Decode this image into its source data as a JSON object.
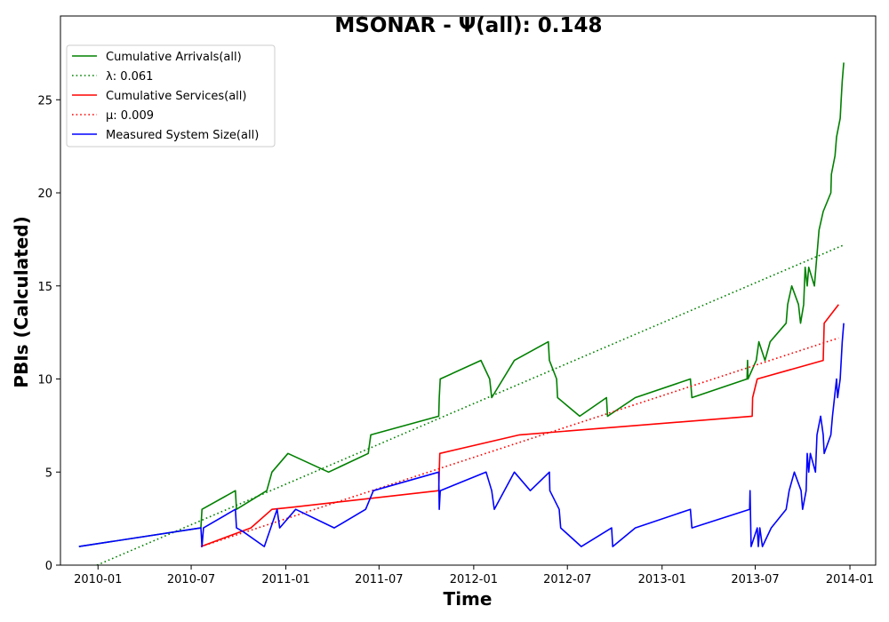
{
  "chart_data": {
    "type": "line",
    "title": "MSONAR -  Ψ(all): 0.148",
    "xlabel": "Time",
    "ylabel": "PBIs (Calculated)",
    "x_axis_type": "date",
    "xlim": [
      "2009-10-20",
      "2014-02-20"
    ],
    "ylim": [
      0,
      29.5
    ],
    "x_ticks": [
      "2010-01",
      "2010-07",
      "2011-01",
      "2011-07",
      "2012-01",
      "2012-07",
      "2013-01",
      "2013-07",
      "2014-01"
    ],
    "y_ticks": [
      0,
      5,
      10,
      15,
      20,
      25
    ],
    "grid": false,
    "legend_position": "upper-left",
    "series": [
      {
        "name": "Cumulative Arrivals(all)",
        "color": "#008000",
        "style": "solid",
        "points": [
          [
            "2009-11-25",
            1
          ],
          [
            "2010-07-20",
            2
          ],
          [
            "2010-07-22",
            3
          ],
          [
            "2010-09-25",
            4
          ],
          [
            "2010-09-27",
            3
          ],
          [
            "2010-11-25",
            4
          ],
          [
            "2010-12-05",
            5
          ],
          [
            "2011-01-05",
            6
          ],
          [
            "2011-03-25",
            5
          ],
          [
            "2011-06-10",
            6
          ],
          [
            "2011-06-15",
            7
          ],
          [
            "2011-10-25",
            8
          ],
          [
            "2011-10-26",
            9
          ],
          [
            "2011-10-28",
            10
          ],
          [
            "2012-01-15",
            11
          ],
          [
            "2012-02-01",
            10
          ],
          [
            "2012-02-05",
            9
          ],
          [
            "2012-03-20",
            11
          ],
          [
            "2012-05-25",
            12
          ],
          [
            "2012-05-27",
            11
          ],
          [
            "2012-06-10",
            10
          ],
          [
            "2012-06-12",
            9
          ],
          [
            "2012-07-25",
            8
          ],
          [
            "2012-09-15",
            9
          ],
          [
            "2012-09-17",
            8
          ],
          [
            "2012-11-10",
            9
          ],
          [
            "2013-02-25",
            10
          ],
          [
            "2013-02-28",
            9
          ],
          [
            "2013-06-15",
            10
          ],
          [
            "2013-06-16",
            11
          ],
          [
            "2013-06-17",
            10
          ],
          [
            "2013-07-03",
            11
          ],
          [
            "2013-07-08",
            12
          ],
          [
            "2013-07-20",
            11
          ],
          [
            "2013-07-30",
            12
          ],
          [
            "2013-08-30",
            13
          ],
          [
            "2013-09-02",
            14
          ],
          [
            "2013-09-10",
            15
          ],
          [
            "2013-09-23",
            14
          ],
          [
            "2013-09-27",
            13
          ],
          [
            "2013-10-03",
            14
          ],
          [
            "2013-10-06",
            16
          ],
          [
            "2013-10-10",
            15
          ],
          [
            "2013-10-13",
            16
          ],
          [
            "2013-10-24",
            15
          ],
          [
            "2013-10-27",
            16
          ],
          [
            "2013-11-02",
            18
          ],
          [
            "2013-11-10",
            19
          ],
          [
            "2013-11-25",
            20
          ],
          [
            "2013-11-26",
            21
          ],
          [
            "2013-12-03",
            22
          ],
          [
            "2013-12-06",
            23
          ],
          [
            "2013-12-13",
            24
          ],
          [
            "2013-12-15",
            25
          ],
          [
            "2013-12-17",
            26
          ],
          [
            "2013-12-20",
            27
          ]
        ]
      },
      {
        "name": "λ: 0.061",
        "color": "#008000",
        "style": "dotted",
        "points": [
          [
            "2009-12-30",
            0
          ],
          [
            "2013-12-20",
            17.2
          ]
        ]
      },
      {
        "name": "Cumulative Services(all)",
        "color": "#ff0000",
        "style": "solid",
        "points": [
          [
            "2010-07-20",
            1
          ],
          [
            "2010-10-25",
            2
          ],
          [
            "2010-12-05",
            3
          ],
          [
            "2011-01-10",
            3.1
          ],
          [
            "2011-10-25",
            4
          ],
          [
            "2011-10-27",
            6
          ],
          [
            "2012-03-30",
            7
          ],
          [
            "2013-06-25",
            8
          ],
          [
            "2013-06-26",
            9
          ],
          [
            "2013-07-05",
            10
          ],
          [
            "2013-11-10",
            11
          ],
          [
            "2013-11-12",
            13
          ],
          [
            "2013-12-10",
            14
          ]
        ]
      },
      {
        "name": "μ: 0.009",
        "color": "#ff0000",
        "style": "dotted",
        "points": [
          [
            "2010-07-20",
            1
          ],
          [
            "2013-12-10",
            12.2
          ]
        ]
      },
      {
        "name": "Measured System Size(all)",
        "color": "#0000ff",
        "style": "solid",
        "points": [
          [
            "2009-11-25",
            1
          ],
          [
            "2010-07-20",
            2
          ],
          [
            "2010-07-22",
            1
          ],
          [
            "2010-07-25",
            2
          ],
          [
            "2010-09-25",
            3
          ],
          [
            "2010-09-27",
            2
          ],
          [
            "2010-10-10",
            1.8
          ],
          [
            "2010-11-20",
            1
          ],
          [
            "2010-12-15",
            3
          ],
          [
            "2010-12-20",
            2
          ],
          [
            "2011-01-20",
            3
          ],
          [
            "2011-04-05",
            2
          ],
          [
            "2011-06-05",
            3
          ],
          [
            "2011-06-20",
            4
          ],
          [
            "2011-10-25",
            5
          ],
          [
            "2011-10-26",
            3
          ],
          [
            "2011-10-28",
            4
          ],
          [
            "2012-01-25",
            5
          ],
          [
            "2012-02-05",
            4
          ],
          [
            "2012-02-10",
            3
          ],
          [
            "2012-03-20",
            5
          ],
          [
            "2012-04-20",
            4
          ],
          [
            "2012-05-27",
            5
          ],
          [
            "2012-05-28",
            4
          ],
          [
            "2012-06-15",
            3
          ],
          [
            "2012-06-18",
            2
          ],
          [
            "2012-07-28",
            1
          ],
          [
            "2012-09-25",
            2
          ],
          [
            "2012-09-27",
            1
          ],
          [
            "2012-11-10",
            2
          ],
          [
            "2013-02-25",
            3
          ],
          [
            "2013-02-28",
            2
          ],
          [
            "2013-06-20",
            3
          ],
          [
            "2013-06-21",
            4
          ],
          [
            "2013-06-23",
            1
          ],
          [
            "2013-07-05",
            2
          ],
          [
            "2013-07-07",
            1
          ],
          [
            "2013-07-10",
            2
          ],
          [
            "2013-07-15",
            1
          ],
          [
            "2013-08-01",
            2
          ],
          [
            "2013-08-30",
            3
          ],
          [
            "2013-09-05",
            4
          ],
          [
            "2013-09-15",
            5
          ],
          [
            "2013-09-28",
            4
          ],
          [
            "2013-10-01",
            3
          ],
          [
            "2013-10-08",
            4
          ],
          [
            "2013-10-10",
            6
          ],
          [
            "2013-10-13",
            5
          ],
          [
            "2013-10-16",
            6
          ],
          [
            "2013-10-26",
            5
          ],
          [
            "2013-10-29",
            7
          ],
          [
            "2013-11-05",
            8
          ],
          [
            "2013-11-10",
            7
          ],
          [
            "2013-11-12",
            6
          ],
          [
            "2013-11-25",
            7
          ],
          [
            "2013-11-28",
            8
          ],
          [
            "2013-12-06",
            10
          ],
          [
            "2013-12-08",
            9
          ],
          [
            "2013-12-13",
            10
          ],
          [
            "2013-12-17",
            12
          ],
          [
            "2013-12-20",
            13
          ]
        ]
      }
    ]
  }
}
